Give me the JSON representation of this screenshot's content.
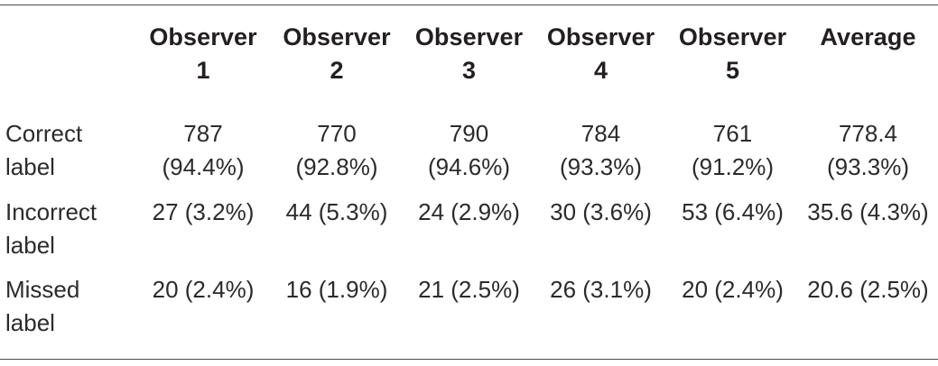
{
  "table": {
    "columns": [
      {
        "line1": "",
        "line2": ""
      },
      {
        "line1": "Observer",
        "line2": "1"
      },
      {
        "line1": "Observer",
        "line2": "2"
      },
      {
        "line1": "Observer",
        "line2": "3"
      },
      {
        "line1": "Observer",
        "line2": "4"
      },
      {
        "line1": "Observer",
        "line2": "5"
      },
      {
        "line1": "Average",
        "line2": ""
      }
    ],
    "rows": [
      {
        "label_line1": "Correct",
        "label_line2": "label",
        "cells": [
          {
            "line1": "787",
            "line2": "(94.4%)"
          },
          {
            "line1": "770",
            "line2": "(92.8%)"
          },
          {
            "line1": "790",
            "line2": "(94.6%)"
          },
          {
            "line1": "784",
            "line2": "(93.3%)"
          },
          {
            "line1": "761",
            "line2": "(91.2%)"
          },
          {
            "line1": "778.4",
            "line2": "(93.3%)"
          }
        ]
      },
      {
        "label_line1": "Incorrect",
        "label_line2": "label",
        "cells": [
          {
            "line1": "27 (3.2%)",
            "line2": ""
          },
          {
            "line1": "44 (5.3%)",
            "line2": ""
          },
          {
            "line1": "24 (2.9%)",
            "line2": ""
          },
          {
            "line1": "30 (3.6%)",
            "line2": ""
          },
          {
            "line1": "53 (6.4%)",
            "line2": ""
          },
          {
            "line1": "35.6 (4.3%)",
            "line2": ""
          }
        ]
      },
      {
        "label_line1": "Missed",
        "label_line2": "label",
        "cells": [
          {
            "line1": "20 (2.4%)",
            "line2": ""
          },
          {
            "line1": "16 (1.9%)",
            "line2": ""
          },
          {
            "line1": "21 (2.5%)",
            "line2": ""
          },
          {
            "line1": "26 (3.1%)",
            "line2": ""
          },
          {
            "line1": "20 (2.4%)",
            "line2": ""
          },
          {
            "line1": "20.6 (2.5%)",
            "line2": ""
          }
        ]
      }
    ]
  }
}
